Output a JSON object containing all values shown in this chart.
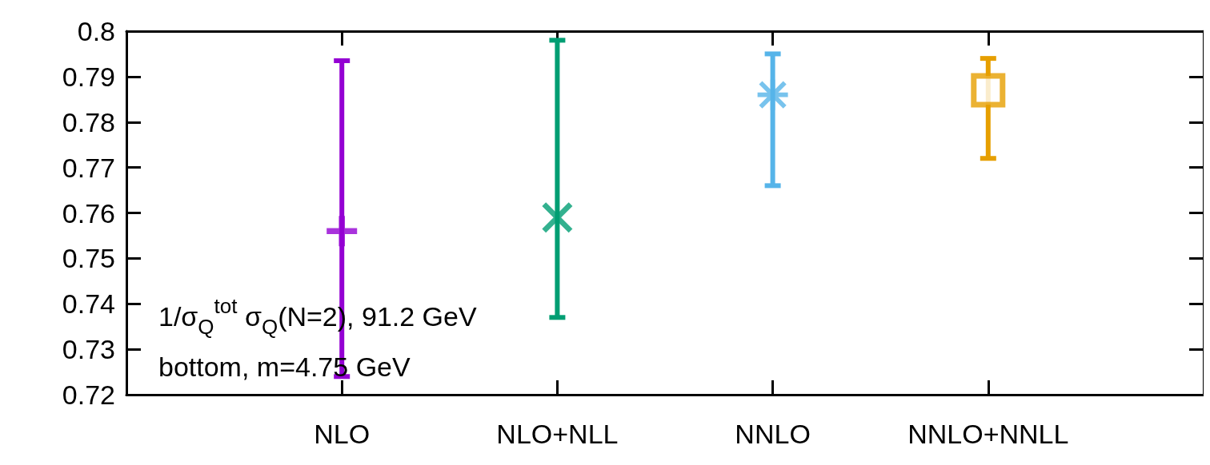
{
  "chart_data": {
    "type": "scatter",
    "categories": [
      "NLO",
      "NLO+NLL",
      "NNLO",
      "NNLO+NNLL"
    ],
    "ylim": [
      0.72,
      0.8
    ],
    "yticks": [
      0.72,
      0.73,
      0.74,
      0.75,
      0.76,
      0.77,
      0.78,
      0.79,
      0.8
    ],
    "annotations": [
      "1/σ$_{Q}$$^{tot}$ σ$_{Q}$(N=2), 91.2 GeV",
      "bottom, m=4.75 GeV"
    ],
    "series": [
      {
        "color": "#9400d3",
        "marker": "plus",
        "values": [
          0.756,
          null,
          null,
          null
        ],
        "errors": [
          [
            0.724,
            0.7935
          ],
          null,
          null,
          null
        ]
      },
      {
        "color": "#009e73",
        "marker": "cross",
        "values": [
          null,
          0.759,
          null,
          null
        ],
        "errors": [
          null,
          [
            0.737,
            0.798
          ],
          null,
          null
        ]
      },
      {
        "color": "#56b4e9",
        "marker": "star",
        "values": [
          null,
          null,
          0.786,
          null
        ],
        "errors": [
          null,
          null,
          [
            0.766,
            0.795
          ],
          null
        ]
      },
      {
        "color": "#e69f00",
        "marker": "square",
        "values": [
          null,
          null,
          null,
          0.787
        ],
        "errors": [
          null,
          null,
          null,
          [
            0.772,
            0.794
          ]
        ]
      }
    ]
  }
}
